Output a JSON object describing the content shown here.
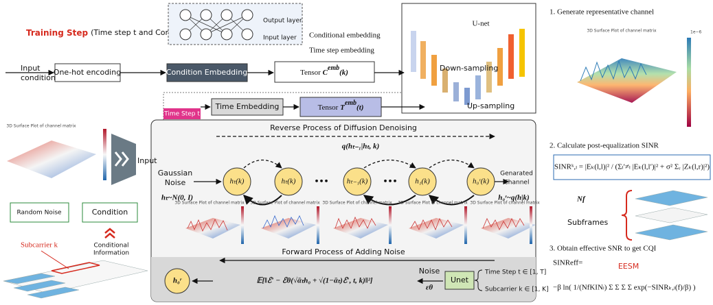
{
  "header": {
    "title": "Training Step",
    "subtitle": "(Time step t and Condition k)"
  },
  "nn": {
    "output_layer": "Output layer",
    "input_layer": "Input layer",
    "conditional_embedding": "Conditional embedding",
    "time_step_embedding": "Time step embedding"
  },
  "unet": {
    "title": "U-net",
    "down": "Down-sampling",
    "up": "Up-sampling"
  },
  "pipeline": {
    "input_line1": "Input",
    "input_line2": "condition k",
    "one_hot": "One-hot encoding",
    "condition_embedding": "Condition Embedding",
    "tensor_c": "Tensor",
    "tensor_c_sym": "C",
    "tensor_c_sup": "emb",
    "tensor_c_arg": "(k)"
  },
  "time": {
    "tab": "Time Step t",
    "embedding": "Time Embedding",
    "tensor_t": "Tensor",
    "tensor_t_sym": "T",
    "tensor_t_sup": "emb",
    "tensor_t_arg": "(t)"
  },
  "diffusion": {
    "reverse": "Reverse Process of Diffusion Denoising",
    "transition": "q(hₜ₋₁|hₜ, k)",
    "noise_line1": "Gaussian",
    "noise_line2": "Noise",
    "noise_dist": "hₜ~N(0, I)",
    "generated_line1": "Genarated",
    "generated_line2": "Channel",
    "generated_dist": "h₀ʳ~q(h|k)",
    "nodes": [
      {
        "label": "hₜ(k)"
      },
      {
        "label": "hₜ(k)"
      },
      {
        "label": "hₜ₋₁(k)"
      },
      {
        "label": "h₁(k)"
      },
      {
        "label": "h₀ʳ(k)"
      }
    ],
    "forward": "Forward Process of Adding Noise",
    "plot_title": "3D Surface Plot of channel matrix"
  },
  "loss": {
    "result": "h₀ʳ",
    "formula": "𝔼[‖ℰ′ − ℰθ(√ᾱₜh₀ + √(1−ᾱₜ)ℰ′, t, k)‖²]",
    "noise": "Noise",
    "eps": "εθ",
    "unet": "Unet",
    "time_step": "Time Step t ∈ [1, T]",
    "subcarrier": "Subcarrier k ∈ [1, K]"
  },
  "left": {
    "plot_title": "3D Surface Plot of channel matrix",
    "input": "Input",
    "random_noise": "Random Noise",
    "condition": "Condition",
    "subcarrier": "Subcarrier k",
    "info_line1": "Conditional",
    "info_line2": "Information"
  },
  "right": {
    "step1": "1. Generate representative channel",
    "plot_title": "3D Surface Plot of channel matrix",
    "scale": "1e−6",
    "step2": "2. Calculate post-equalization SINR",
    "sinr_formula": "SINRᵏ,ₗ = |Eₖ(l,l)|² / (Σₗ′≠ₗ |Eₖ(l,l′)|² + σ² Σᵣ |Zₖ(l,r)|²)",
    "nf": "Nf",
    "subframes": "Subframes",
    "step3": "3. Obtain effective SNR to get CQI",
    "sinr_eff": "SINReff=",
    "eesm": "EESM",
    "eesm_formula": "−β ln( 1/(NfKINₗ) Σ Σ Σ Σ exp(−SINRₖ,ₗ(f)/β) )"
  }
}
